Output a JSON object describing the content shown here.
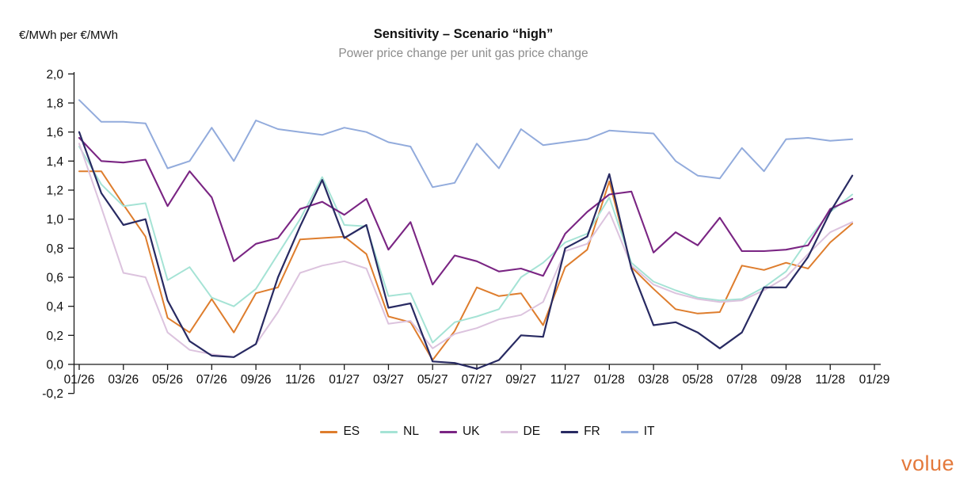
{
  "header": {
    "y_axis_unit": "€/MWh per €/MWh",
    "title": "Sensitivity – Scenario “high”",
    "subtitle": "Power price change per unit gas price change"
  },
  "branding": {
    "logo_text": "volue",
    "logo_color": "#E4793B"
  },
  "chart_data": {
    "type": "line",
    "title": "Sensitivity – Scenario “high”",
    "subtitle": "Power price change per unit gas price change",
    "ylabel": "€/MWh per €/MWh",
    "xlabel": "",
    "ylim": [
      -0.2,
      2.0
    ],
    "grid": false,
    "legend_position": "bottom",
    "axis_color": "#1a1a1a",
    "y_tick_labels": [
      "2,0",
      "1,8",
      "1,6",
      "1,4",
      "1,2",
      "1,0",
      "0,8",
      "0,6",
      "0,4",
      "0,2",
      "0,0",
      "-0,2"
    ],
    "x_tick_labels": [
      "01/26",
      "03/26",
      "05/26",
      "07/26",
      "09/26",
      "11/26",
      "01/27",
      "03/27",
      "05/27",
      "07/27",
      "09/27",
      "11/27",
      "01/28",
      "03/28",
      "05/28",
      "07/28",
      "09/28",
      "11/28",
      "01/29"
    ],
    "x": [
      "01/26",
      "02/26",
      "03/26",
      "04/26",
      "05/26",
      "06/26",
      "07/26",
      "08/26",
      "09/26",
      "10/26",
      "11/26",
      "12/26",
      "01/27",
      "02/27",
      "03/27",
      "04/27",
      "05/27",
      "06/27",
      "07/27",
      "08/27",
      "09/27",
      "10/27",
      "11/27",
      "12/27",
      "01/28",
      "02/28",
      "03/28",
      "04/28",
      "05/28",
      "06/28",
      "07/28",
      "08/28",
      "09/28",
      "10/28",
      "11/28",
      "12/28"
    ],
    "series": [
      {
        "name": "ES",
        "color": "#DE7D2D",
        "width": 2.0,
        "values": [
          1.33,
          1.33,
          1.1,
          0.88,
          0.32,
          0.22,
          0.45,
          0.22,
          0.49,
          0.53,
          0.86,
          0.87,
          0.88,
          0.76,
          0.33,
          0.29,
          0.03,
          0.23,
          0.53,
          0.47,
          0.49,
          0.27,
          0.67,
          0.79,
          1.26,
          0.67,
          0.52,
          0.38,
          0.35,
          0.36,
          0.68,
          0.65,
          0.7,
          0.66,
          0.84,
          0.97
        ]
      },
      {
        "name": "NL",
        "color": "#A5E3D5",
        "width": 2.0,
        "values": [
          1.5,
          1.24,
          1.09,
          1.11,
          0.58,
          0.67,
          0.46,
          0.4,
          0.52,
          0.76,
          1.0,
          1.29,
          0.96,
          0.95,
          0.47,
          0.49,
          0.15,
          0.29,
          0.33,
          0.38,
          0.6,
          0.7,
          0.84,
          0.9,
          1.15,
          0.7,
          0.57,
          0.51,
          0.46,
          0.44,
          0.45,
          0.53,
          0.64,
          0.86,
          1.05,
          1.17
        ]
      },
      {
        "name": "UK",
        "color": "#7A2583",
        "width": 2.1,
        "values": [
          1.56,
          1.4,
          1.39,
          1.41,
          1.09,
          1.33,
          1.15,
          0.71,
          0.83,
          0.87,
          1.07,
          1.12,
          1.03,
          1.14,
          0.79,
          0.98,
          0.55,
          0.75,
          0.71,
          0.64,
          0.66,
          0.61,
          0.9,
          1.05,
          1.17,
          1.19,
          0.77,
          0.91,
          0.82,
          1.01,
          0.78,
          0.78,
          0.79,
          0.82,
          1.07,
          1.14
        ]
      },
      {
        "name": "DE",
        "color": "#DCC3DE",
        "width": 2.0,
        "values": [
          1.52,
          1.08,
          0.63,
          0.6,
          0.22,
          0.1,
          0.07,
          0.05,
          0.14,
          0.36,
          0.63,
          0.68,
          0.71,
          0.66,
          0.28,
          0.3,
          0.11,
          0.21,
          0.25,
          0.31,
          0.34,
          0.43,
          0.78,
          0.83,
          1.05,
          0.68,
          0.55,
          0.49,
          0.45,
          0.43,
          0.44,
          0.51,
          0.6,
          0.76,
          0.91,
          0.98
        ]
      },
      {
        "name": "FR",
        "color": "#282A62",
        "width": 2.2,
        "values": [
          1.6,
          1.18,
          0.96,
          1.0,
          0.44,
          0.16,
          0.06,
          0.05,
          0.14,
          0.6,
          0.95,
          1.27,
          0.87,
          0.96,
          0.39,
          0.42,
          0.02,
          0.01,
          -0.03,
          0.03,
          0.2,
          0.19,
          0.8,
          0.88,
          1.31,
          0.66,
          0.27,
          0.29,
          0.22,
          0.11,
          0.22,
          0.53,
          0.53,
          0.74,
          1.05,
          1.3
        ]
      },
      {
        "name": "IT",
        "color": "#92ABDC",
        "width": 2.0,
        "values": [
          1.82,
          1.67,
          1.67,
          1.66,
          1.35,
          1.4,
          1.63,
          1.4,
          1.68,
          1.62,
          1.6,
          1.58,
          1.63,
          1.6,
          1.53,
          1.5,
          1.22,
          1.25,
          1.52,
          1.35,
          1.62,
          1.51,
          1.53,
          1.55,
          1.61,
          1.6,
          1.59,
          1.4,
          1.3,
          1.28,
          1.49,
          1.33,
          1.55,
          1.56,
          1.54,
          1.55
        ]
      }
    ]
  }
}
